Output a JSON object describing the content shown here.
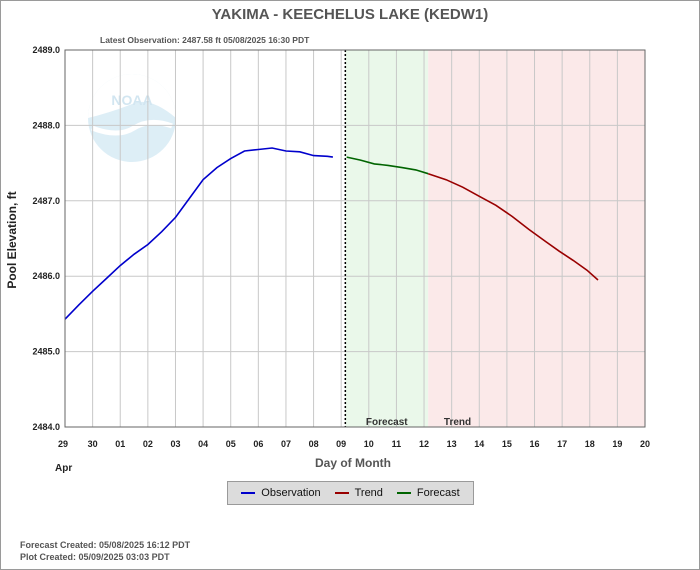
{
  "chart_data": {
    "type": "line",
    "title": "YAKIMA - KEECHELUS LAKE  (KEDW1)",
    "subtitle": "Latest Observation: 2487.58 ft 05/08/2025 16:30 PDT",
    "xlabel": "Day of Month",
    "ylabel": "Pool Elevation, ft",
    "x_month_label": "Apr",
    "x_tick_labels": [
      "29",
      "30",
      "01",
      "02",
      "03",
      "04",
      "05",
      "06",
      "07",
      "08",
      "09",
      "10",
      "11",
      "12",
      "13",
      "14",
      "15",
      "16",
      "17",
      "18",
      "19",
      "20"
    ],
    "y_tick_labels": [
      "2484.0",
      "2485.0",
      "2486.0",
      "2487.0",
      "2488.0",
      "2489.0"
    ],
    "ylim": [
      2484.0,
      2489.0
    ],
    "xlim": [
      0,
      21
    ],
    "grid": true,
    "regions": [
      {
        "label": "Forecast",
        "x_start": 10.15,
        "x_end": 13.15,
        "color": "#eaf8ea"
      },
      {
        "label": "Trend",
        "x_start": 13.15,
        "x_end": 21,
        "color": "#fbe9e9"
      }
    ],
    "current_time_x": 10.15,
    "series": [
      {
        "name": "Observation",
        "color": "#0000cc",
        "x": [
          0,
          0.5,
          1,
          1.5,
          2,
          2.5,
          3,
          3.5,
          4,
          4.5,
          5,
          5.5,
          6,
          6.5,
          7,
          7.5,
          8,
          8.5,
          9,
          9.5,
          9.7
        ],
        "y": [
          2485.43,
          2485.62,
          2485.8,
          2485.97,
          2486.14,
          2486.29,
          2486.42,
          2486.59,
          2486.78,
          2487.03,
          2487.28,
          2487.44,
          2487.56,
          2487.66,
          2487.68,
          2487.7,
          2487.66,
          2487.65,
          2487.6,
          2487.59,
          2487.58
        ]
      },
      {
        "name": "Forecast",
        "color": "#006400",
        "x": [
          10.2,
          10.7,
          11.2,
          11.7,
          12.2,
          12.7,
          13.15
        ],
        "y": [
          2487.58,
          2487.54,
          2487.49,
          2487.47,
          2487.44,
          2487.41,
          2487.36
        ]
      },
      {
        "name": "Trend",
        "color": "#990000",
        "x": [
          13.15,
          13.8,
          14.4,
          15.0,
          15.6,
          16.2,
          16.8,
          17.4,
          17.9,
          18.4,
          18.9,
          19.3
        ],
        "y": [
          2487.36,
          2487.28,
          2487.18,
          2487.06,
          2486.94,
          2486.79,
          2486.62,
          2486.46,
          2486.33,
          2486.21,
          2486.08,
          2485.95
        ]
      }
    ]
  },
  "legend": [
    {
      "label": "Observation",
      "color": "#0000cc"
    },
    {
      "label": "Trend",
      "color": "#990000"
    },
    {
      "label": "Forecast",
      "color": "#006400"
    }
  ],
  "footer": {
    "forecast_created": "Forecast Created: 05/08/2025 16:12 PDT",
    "plot_created": "Plot Created: 05/09/2025 03:03 PDT"
  },
  "watermark": {
    "text": "NOAA"
  }
}
